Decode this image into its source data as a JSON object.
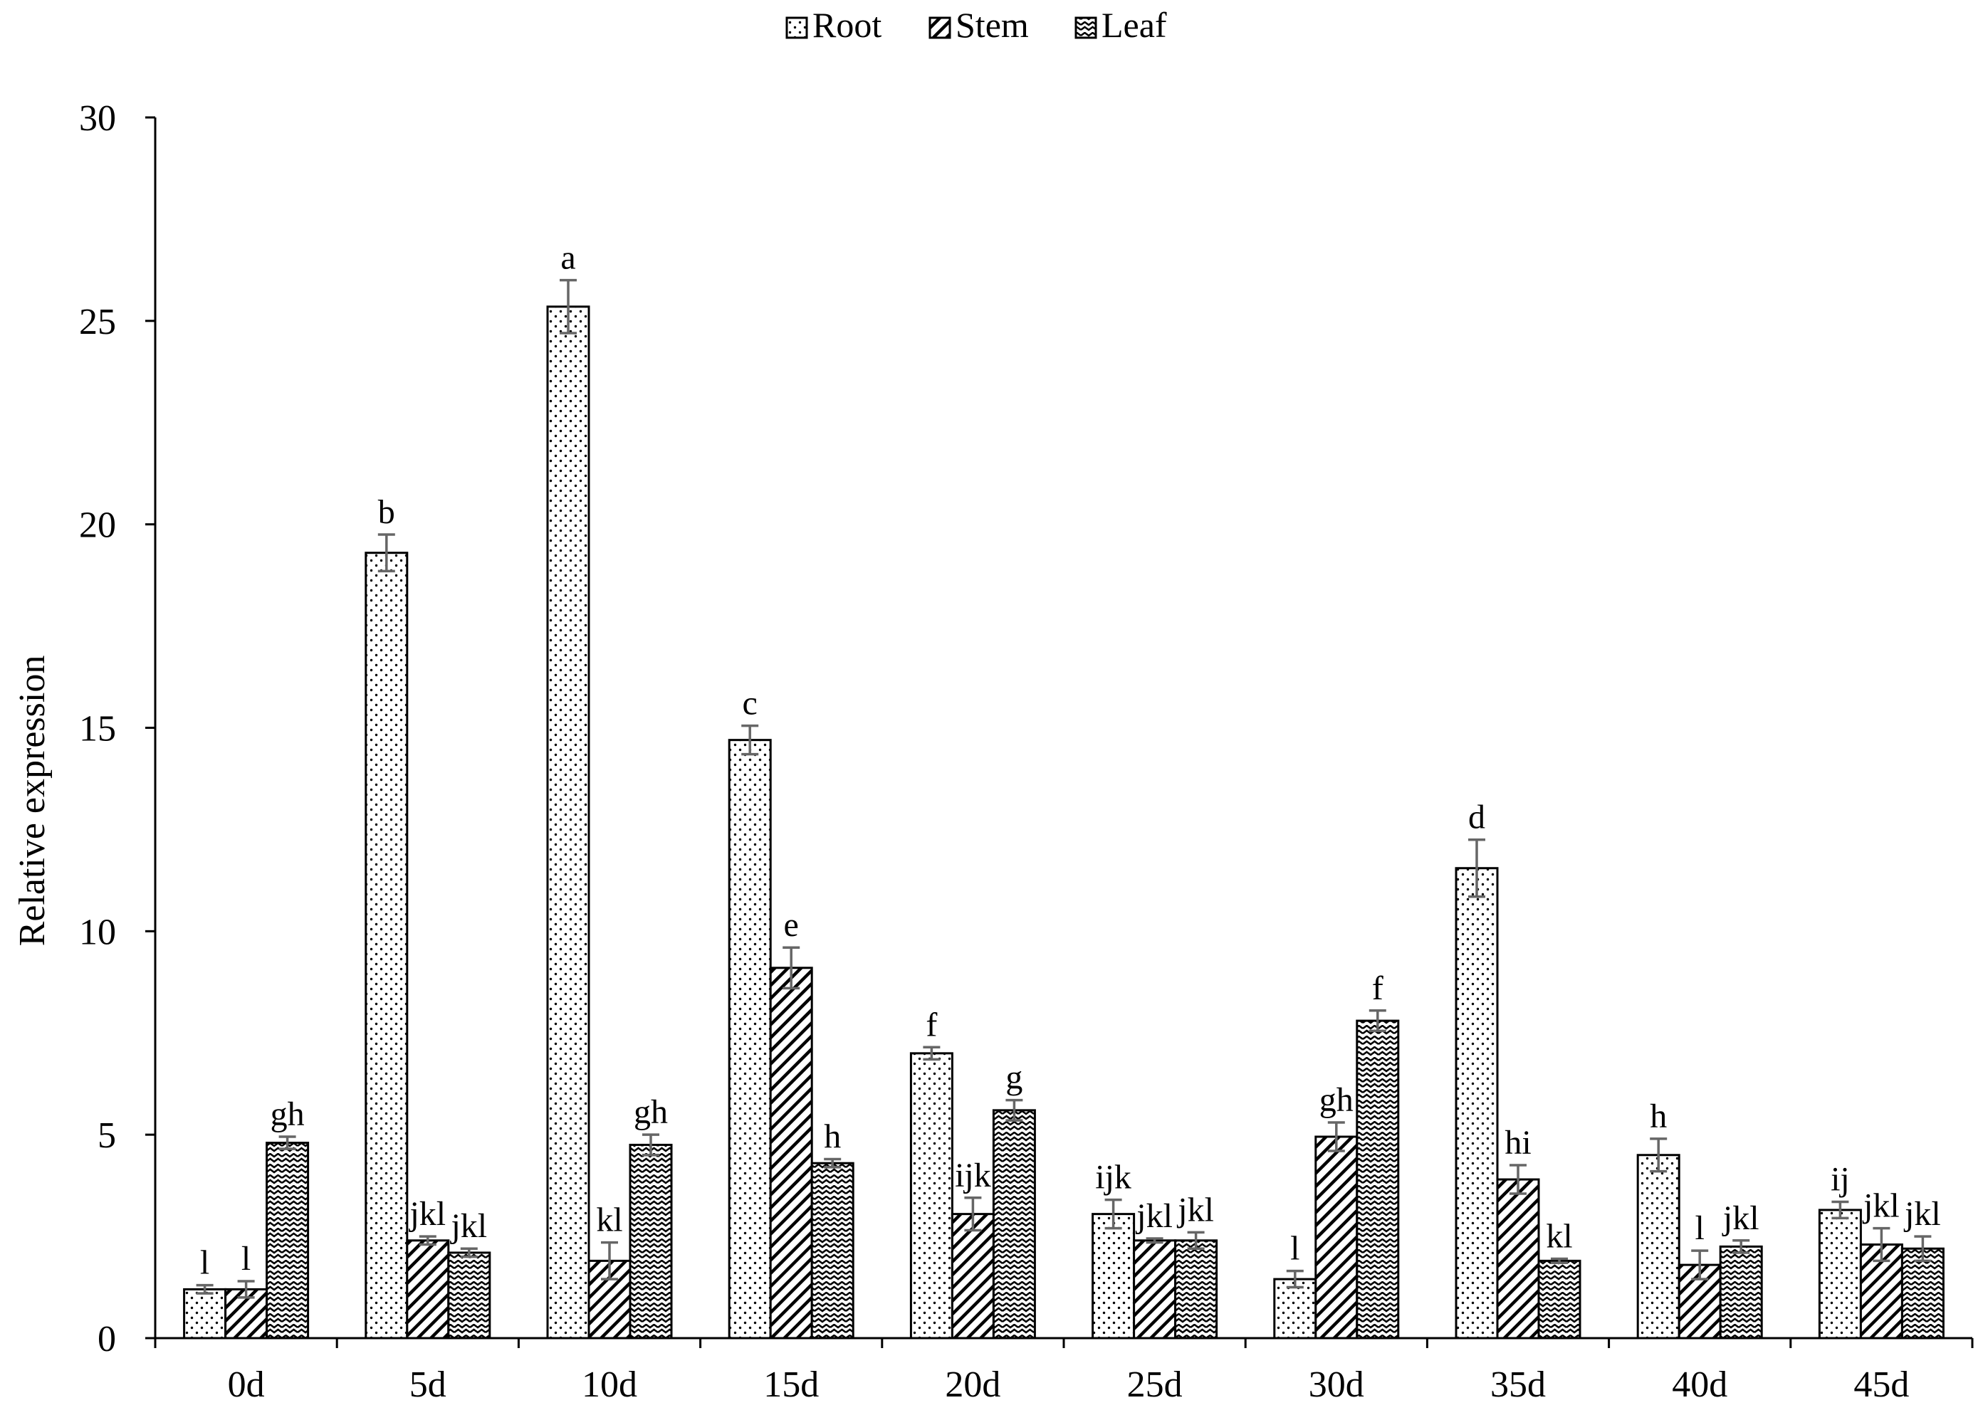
{
  "chart_data": {
    "type": "bar",
    "title": "",
    "xlabel": "",
    "ylabel": "Relative expression",
    "ylim": [
      0,
      30
    ],
    "yticks": [
      "0",
      "5",
      "10",
      "15",
      "20",
      "25",
      "30"
    ],
    "grid": false,
    "legend_position": "top-center",
    "categories": [
      "0d",
      "5d",
      "10d",
      "15d",
      "20d",
      "25d",
      "30d",
      "35d",
      "40d",
      "45d"
    ],
    "series": [
      {
        "name": "Root",
        "pattern": "dots",
        "values": [
          1.2,
          19.3,
          25.35,
          14.7,
          7.0,
          3.05,
          1.45,
          11.55,
          4.5,
          3.15
        ],
        "errors": [
          0.1,
          0.45,
          0.65,
          0.35,
          0.15,
          0.35,
          0.2,
          0.7,
          0.4,
          0.2
        ],
        "letters": [
          "l",
          "b",
          "a",
          "c",
          "f",
          "ijk",
          "l",
          "d",
          "h",
          "ij"
        ]
      },
      {
        "name": "Stem",
        "pattern": "diagonal",
        "values": [
          1.2,
          2.4,
          1.9,
          9.1,
          3.05,
          2.4,
          4.95,
          3.9,
          1.8,
          2.3
        ],
        "errors": [
          0.2,
          0.1,
          0.45,
          0.5,
          0.4,
          0.05,
          0.35,
          0.35,
          0.35,
          0.4
        ],
        "letters": [
          "l",
          "jkl",
          "kl",
          "e",
          "ijk",
          "jkl",
          "gh",
          "hi",
          "l",
          "jkl"
        ]
      },
      {
        "name": "Leaf",
        "pattern": "wave",
        "values": [
          4.8,
          2.1,
          4.75,
          4.3,
          5.6,
          2.4,
          7.8,
          1.9,
          2.25,
          2.2
        ],
        "errors": [
          0.15,
          0.1,
          0.25,
          0.1,
          0.25,
          0.2,
          0.25,
          0.05,
          0.15,
          0.3
        ],
        "letters": [
          "gh",
          "jkl",
          "gh",
          "h",
          "g",
          "jkl",
          "f",
          "kl",
          "jkl",
          "jkl"
        ]
      }
    ]
  }
}
